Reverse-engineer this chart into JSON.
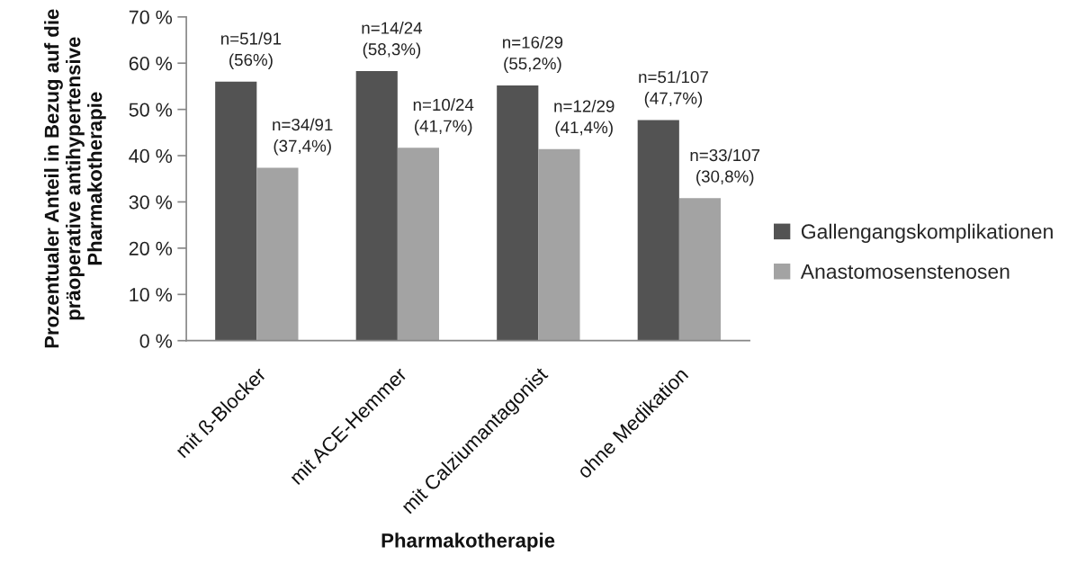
{
  "chart_data": {
    "type": "bar",
    "categories": [
      "mit ß-Blocker",
      "mit ACE-Hemmer",
      "mit Calziumantagonist",
      "ohne Medikation"
    ],
    "series": [
      {
        "name": "Gallengangskomplikationen",
        "color": "#535353",
        "values": [
          56,
          58.3,
          55.2,
          47.7
        ],
        "value_labels": [
          "n=51/91\n(56%)",
          "n=14/24\n(58,3%)",
          "n=16/29\n(55,2%)",
          "n=51/107\n(47,7%)"
        ]
      },
      {
        "name": "Anastomosenstenosen",
        "color": "#a3a3a3",
        "values": [
          37.4,
          41.7,
          41.4,
          30.8
        ],
        "value_labels": [
          "n=34/91\n(37,4%)",
          "n=10/24\n(41,7%)",
          "n=12/29\n(41,4%)",
          "n=33/107\n(30,8%)"
        ]
      }
    ],
    "xlabel": "Pharmakotherapie",
    "ylabel": "Prozentualer Anteil in Bezug auf die\npräoperative antihypertensive\nPharmakotherapie",
    "ylim": [
      0,
      70
    ],
    "yticks": [
      {
        "value": 0,
        "label": "0 %"
      },
      {
        "value": 10,
        "label": "10 %"
      },
      {
        "value": 20,
        "label": "20 %"
      },
      {
        "value": 30,
        "label": "30 %"
      },
      {
        "value": 40,
        "label": "40 %"
      },
      {
        "value": 50,
        "label": "50 %"
      },
      {
        "value": 60,
        "label": "60 %"
      },
      {
        "value": 70,
        "label": "70 %"
      }
    ],
    "legend": "right"
  }
}
